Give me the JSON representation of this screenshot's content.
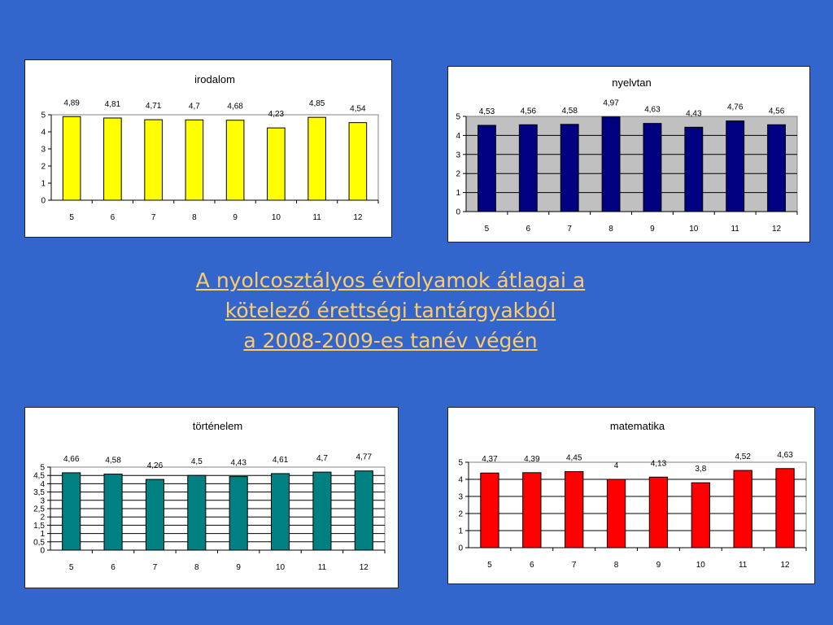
{
  "slide": {
    "title_lines": [
      "A nyolcosztályos évfolyamok átlagai a ",
      "kötelező érettségi tantárgyakból",
      "a 2008-2009-es tanév végén"
    ],
    "title_color": "#ffcc66",
    "background_color": "#3366cc"
  },
  "chart_data": [
    {
      "type": "bar",
      "title": "irodalom",
      "categories": [
        "5",
        "6",
        "7",
        "8",
        "9",
        "10",
        "11",
        "12"
      ],
      "values": [
        4.89,
        4.81,
        4.71,
        4.7,
        4.68,
        4.23,
        4.85,
        4.54
      ],
      "data_labels": [
        "4,89",
        "4,81",
        "4,71",
        "4,7",
        "4,68",
        "4,23",
        "4,85",
        "4,54"
      ],
      "ylim": [
        0,
        5
      ],
      "yticks": [
        "0",
        "1",
        "2",
        "3",
        "4",
        "5"
      ],
      "grid": false,
      "plot_background": "#ffffff",
      "bar_color": "#ffff00"
    },
    {
      "type": "bar",
      "title": "nyelvtan",
      "categories": [
        "5",
        "6",
        "7",
        "8",
        "9",
        "10",
        "11",
        "12"
      ],
      "values": [
        4.53,
        4.56,
        4.58,
        4.97,
        4.63,
        4.43,
        4.76,
        4.56
      ],
      "data_labels": [
        "4,53",
        "4,56",
        "4,58",
        "4,97",
        "4,63",
        "4,43",
        "4,76",
        "4,56"
      ],
      "ylim": [
        0,
        5
      ],
      "yticks": [
        "0",
        "1",
        "2",
        "3",
        "4",
        "5"
      ],
      "grid": true,
      "plot_background": "#c0c0c0",
      "bar_color": "#000080"
    },
    {
      "type": "bar",
      "title": "történelem",
      "categories": [
        "5",
        "6",
        "7",
        "8",
        "9",
        "10",
        "11",
        "12"
      ],
      "values": [
        4.66,
        4.58,
        4.26,
        4.5,
        4.43,
        4.61,
        4.7,
        4.77
      ],
      "data_labels": [
        "4,66",
        "4,58",
        "4,26",
        "4,5",
        "4,43",
        "4,61",
        "4,7",
        "4,77"
      ],
      "ylim": [
        0,
        5
      ],
      "yticks": [
        "0",
        "0,5",
        "1",
        "1,5",
        "2",
        "2,5",
        "3",
        "3,5",
        "4",
        "4,5",
        "5"
      ],
      "grid": true,
      "plot_background": "#ffffff",
      "bar_color": "#008080"
    },
    {
      "type": "bar",
      "title": "matematika",
      "categories": [
        "5",
        "6",
        "7",
        "8",
        "9",
        "10",
        "11",
        "12"
      ],
      "values": [
        4.37,
        4.39,
        4.45,
        4,
        4.13,
        3.8,
        4.52,
        4.63
      ],
      "data_labels": [
        "4,37",
        "4,39",
        "4,45",
        "4",
        "4,13",
        "3,8",
        "4,52",
        "4,63"
      ],
      "ylim": [
        0,
        5
      ],
      "yticks": [
        "0",
        "1",
        "2",
        "3",
        "4",
        "5"
      ],
      "grid": true,
      "plot_background": "#ffffff",
      "bar_color": "#ff0000"
    }
  ]
}
